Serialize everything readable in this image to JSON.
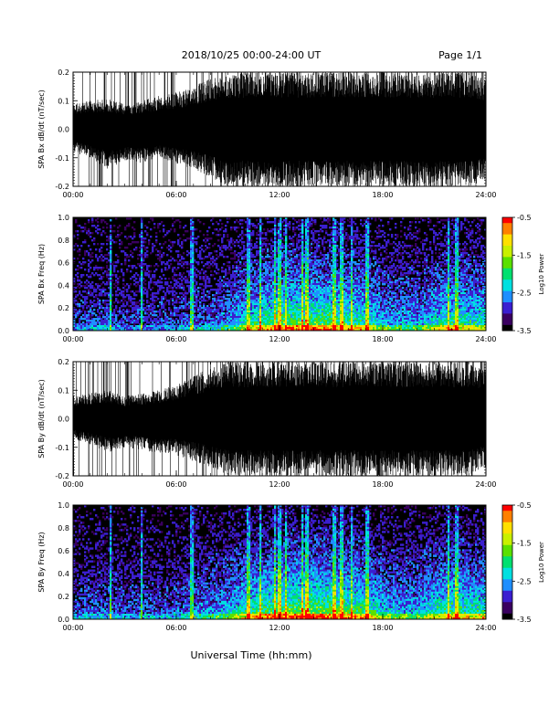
{
  "header": {
    "title": "2018/10/25  00:00-24:00 UT",
    "page_label": "Page 1/1"
  },
  "footer": {
    "xlabel": "Universal Time (hh:mm)"
  },
  "colors": {
    "trace": "#000000",
    "background": "#ffffff",
    "colormap": [
      "#000000",
      "#3a0060",
      "#3b1fd0",
      "#1f8fff",
      "#00e0e0",
      "#00e070",
      "#5ae000",
      "#c8f000",
      "#ffe000",
      "#ff8000",
      "#ff0000"
    ]
  },
  "chart_data": [
    {
      "type": "line",
      "panel": "bx-waveform",
      "ylabel": "SPA Bx dB/dt (nT/sec)",
      "xlabel": "",
      "ylim": [
        -0.2,
        0.2
      ],
      "yticks": [
        "0.2",
        "0.1",
        "0.0",
        "-0.1",
        "-0.2"
      ],
      "ytick_values": [
        0.2,
        0.1,
        0.0,
        -0.1,
        -0.2
      ],
      "xlim": [
        0,
        24
      ],
      "xticks": [
        "00:00",
        "06:00",
        "12:00",
        "18:00",
        "24:00"
      ],
      "xtick_values": [
        0,
        6,
        12,
        18,
        24
      ],
      "envelope": {
        "hour": [
          0,
          1,
          2,
          3,
          4,
          5,
          6,
          7,
          8,
          9,
          10,
          11,
          12,
          13,
          14,
          15,
          16,
          17,
          18,
          19,
          20,
          21,
          22,
          23,
          24
        ],
        "upper": [
          0.09,
          0.1,
          0.11,
          0.09,
          0.1,
          0.12,
          0.13,
          0.15,
          0.18,
          0.2,
          0.2,
          0.2,
          0.2,
          0.2,
          0.2,
          0.2,
          0.2,
          0.2,
          0.2,
          0.2,
          0.2,
          0.2,
          0.2,
          0.2,
          0.18
        ],
        "lower": [
          -0.08,
          -0.1,
          -0.14,
          -0.11,
          -0.12,
          -0.1,
          -0.12,
          -0.14,
          -0.17,
          -0.2,
          -0.2,
          -0.2,
          -0.2,
          -0.2,
          -0.2,
          -0.2,
          -0.2,
          -0.2,
          -0.2,
          -0.2,
          -0.2,
          -0.2,
          -0.2,
          -0.2,
          -0.18
        ]
      }
    },
    {
      "type": "heatmap",
      "panel": "bx-spectrogram",
      "ylabel": "SPA Bx Freq (Hz)",
      "ylim": [
        0,
        1.0
      ],
      "yticks": [
        "1.0",
        "0.8",
        "0.6",
        "0.4",
        "0.2",
        "0.0"
      ],
      "ytick_values": [
        1.0,
        0.8,
        0.6,
        0.4,
        0.2,
        0.0
      ],
      "xlim": [
        0,
        24
      ],
      "xticks": [
        "00:00",
        "06:00",
        "12:00",
        "18:00",
        "24:00"
      ],
      "xtick_values": [
        0,
        6,
        12,
        18,
        24
      ],
      "colorbar": {
        "label": "Log10 Power",
        "range": [
          -3.5,
          -0.5
        ],
        "ticks": [
          "-0.5",
          "-1.5",
          "-2.5",
          "-3.5"
        ],
        "tick_values": [
          -0.5,
          -1.5,
          -2.5,
          -3.5
        ]
      },
      "activity_by_hour": [
        0.3,
        0.35,
        0.35,
        0.3,
        0.3,
        0.3,
        0.35,
        0.4,
        0.4,
        0.5,
        0.7,
        0.85,
        0.9,
        0.95,
        0.95,
        0.9,
        0.85,
        0.8,
        0.6,
        0.55,
        0.55,
        0.7,
        0.8,
        0.75
      ],
      "bright_columns_hours": [
        2.2,
        4.0,
        6.9,
        10.2,
        10.9,
        11.7,
        12.0,
        12.4,
        13.3,
        13.6,
        15.2,
        15.6,
        16.2,
        17.1,
        21.8,
        22.3
      ]
    },
    {
      "type": "line",
      "panel": "by-waveform",
      "ylabel": "SPA By dB/dt (nT/sec)",
      "xlabel": "",
      "ylim": [
        -0.2,
        0.2
      ],
      "yticks": [
        "0.2",
        "0.1",
        "0.0",
        "-0.1",
        "-0.2"
      ],
      "ytick_values": [
        0.2,
        0.1,
        0.0,
        -0.1,
        -0.2
      ],
      "xlim": [
        0,
        24
      ],
      "xticks": [
        "00:00",
        "06:00",
        "12:00",
        "18:00",
        "24:00"
      ],
      "xtick_values": [
        0,
        6,
        12,
        18,
        24
      ],
      "envelope": {
        "hour": [
          0,
          1,
          2,
          3,
          4,
          5,
          6,
          7,
          8,
          9,
          10,
          11,
          12,
          13,
          14,
          15,
          16,
          17,
          18,
          19,
          20,
          21,
          22,
          23,
          24
        ],
        "upper": [
          0.08,
          0.09,
          0.1,
          0.08,
          0.09,
          0.1,
          0.12,
          0.15,
          0.18,
          0.2,
          0.2,
          0.2,
          0.2,
          0.2,
          0.2,
          0.2,
          0.2,
          0.2,
          0.2,
          0.2,
          0.2,
          0.2,
          0.2,
          0.2,
          0.17
        ],
        "lower": [
          -0.07,
          -0.09,
          -0.12,
          -0.1,
          -0.11,
          -0.12,
          -0.13,
          -0.15,
          -0.17,
          -0.2,
          -0.2,
          -0.2,
          -0.2,
          -0.2,
          -0.2,
          -0.2,
          -0.2,
          -0.2,
          -0.2,
          -0.2,
          -0.2,
          -0.2,
          -0.2,
          -0.2,
          -0.17
        ]
      }
    },
    {
      "type": "heatmap",
      "panel": "by-spectrogram",
      "ylabel": "SPA By Freq (Hz)",
      "ylim": [
        0,
        1.0
      ],
      "yticks": [
        "1.0",
        "0.8",
        "0.6",
        "0.4",
        "0.2",
        "0.0"
      ],
      "ytick_values": [
        1.0,
        0.8,
        0.6,
        0.4,
        0.2,
        0.0
      ],
      "xlim": [
        0,
        24
      ],
      "xticks": [
        "00:00",
        "06:00",
        "12:00",
        "18:00",
        "24:00"
      ],
      "xtick_values": [
        0,
        6,
        12,
        18,
        24
      ],
      "colorbar": {
        "label": "Log10 Power",
        "range": [
          -3.5,
          -0.5
        ],
        "ticks": [
          "-0.5",
          "-1.5",
          "-2.5",
          "-3.5"
        ],
        "tick_values": [
          -0.5,
          -1.5,
          -2.5,
          -3.5
        ]
      },
      "activity_by_hour": [
        0.35,
        0.4,
        0.4,
        0.35,
        0.35,
        0.35,
        0.4,
        0.45,
        0.5,
        0.6,
        0.8,
        0.9,
        0.95,
        1.0,
        1.0,
        0.95,
        0.9,
        0.85,
        0.65,
        0.6,
        0.6,
        0.75,
        0.85,
        0.8
      ],
      "bright_columns_hours": [
        2.2,
        4.0,
        6.9,
        10.2,
        10.9,
        11.7,
        12.0,
        12.4,
        13.3,
        13.6,
        15.2,
        15.6,
        16.2,
        17.1,
        21.8,
        22.3
      ]
    }
  ]
}
